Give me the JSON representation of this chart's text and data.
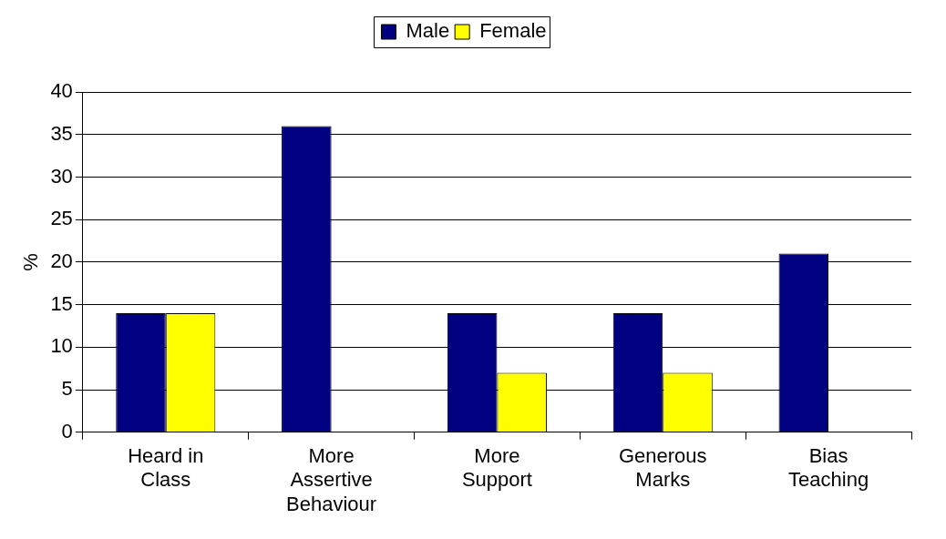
{
  "chart_data": {
    "type": "bar",
    "ylabel": "%",
    "categories": [
      "Heard in Class",
      "More Assertive Behaviour",
      "More Support",
      "Generous Marks",
      "Bias Teaching"
    ],
    "series": [
      {
        "name": "Male",
        "color": "#000080",
        "values": [
          14,
          36,
          14,
          14,
          21
        ]
      },
      {
        "name": "Female",
        "color": "#ffff00",
        "values": [
          14,
          0,
          7,
          7,
          0
        ]
      }
    ],
    "ylim": [
      0,
      40
    ],
    "yticks": [
      0,
      5,
      10,
      15,
      20,
      25,
      30,
      35,
      40
    ],
    "grid": "y",
    "legend": "top"
  }
}
